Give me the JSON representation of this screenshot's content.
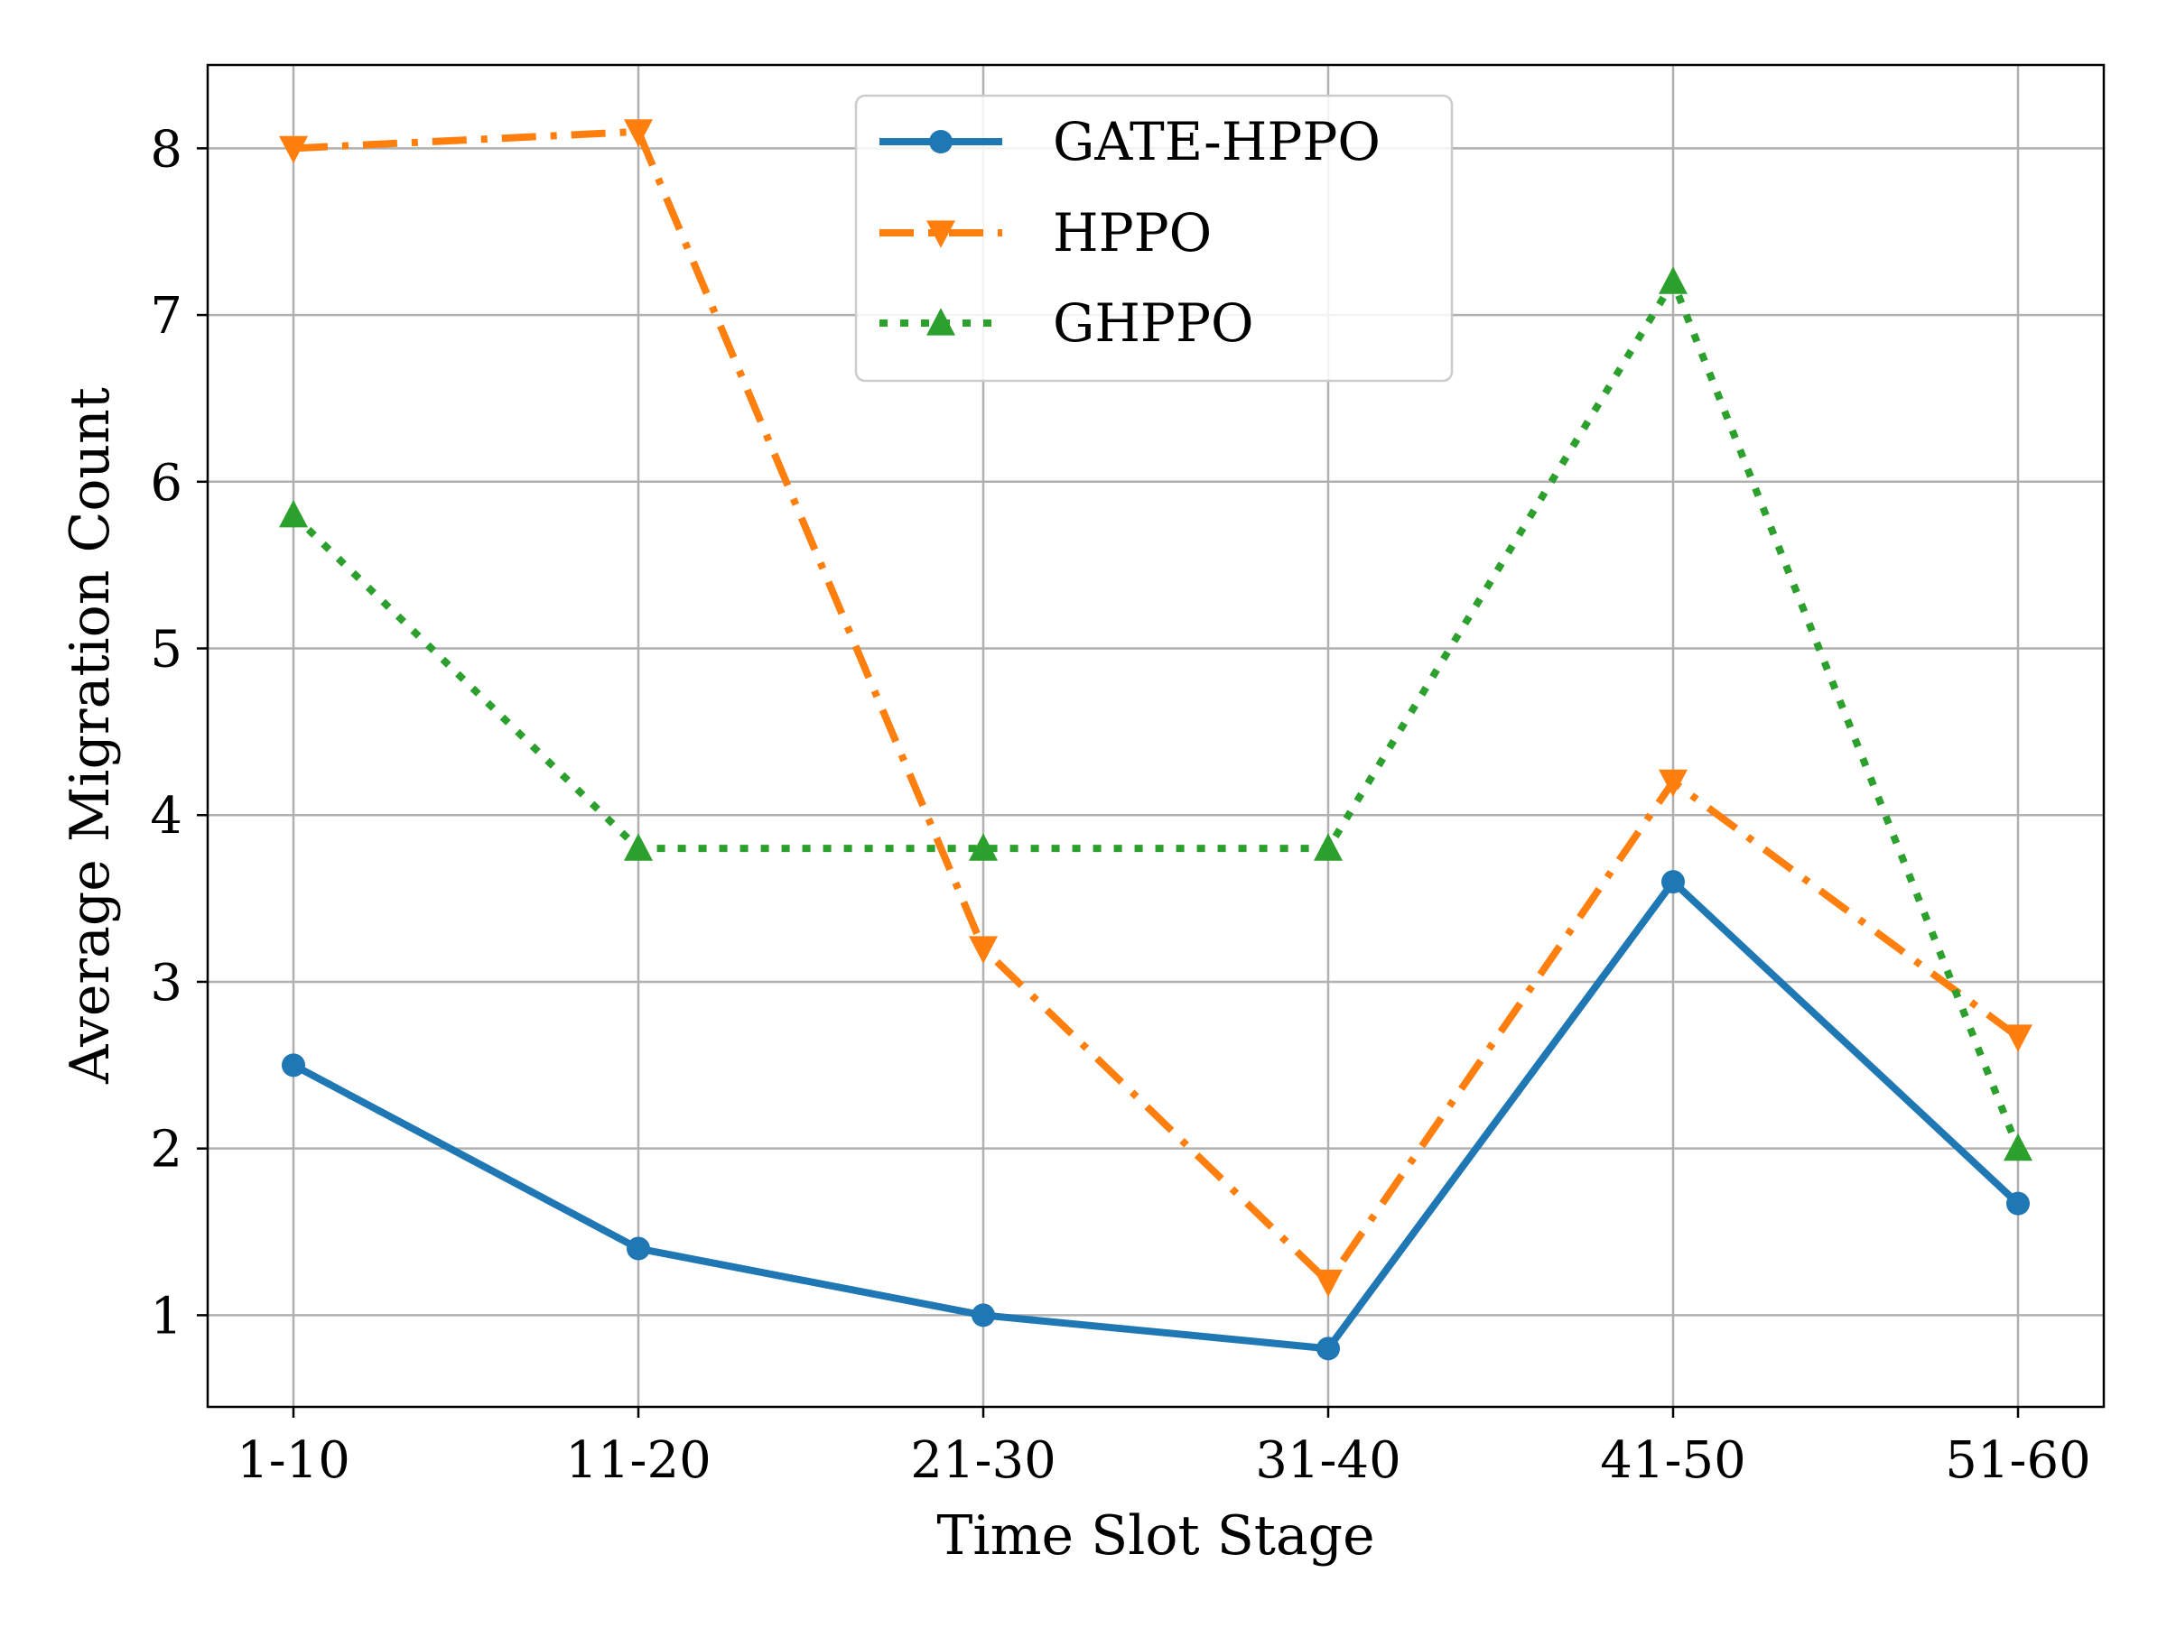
{
  "chart_data": {
    "type": "line",
    "title": "",
    "xlabel": "Time Slot Stage",
    "ylabel": "Average Migration Count",
    "categories": [
      "1-10",
      "11-20",
      "21-30",
      "31-40",
      "41-50",
      "51-60"
    ],
    "ylim": [
      0.45,
      8.5
    ],
    "yticks": [
      1,
      2,
      3,
      4,
      5,
      6,
      7,
      8
    ],
    "grid": true,
    "legend_position": "top-center",
    "series": [
      {
        "name": "GATE-HPPO",
        "values": [
          2.5,
          1.4,
          1.0,
          0.8,
          3.6,
          1.67
        ],
        "color": "#1f77b4",
        "line_style": "solid",
        "marker": "circle"
      },
      {
        "name": "HPPO",
        "values": [
          8.0,
          8.1,
          3.2,
          1.2,
          4.2,
          2.67
        ],
        "color": "#ff7f0e",
        "line_style": "dash-dot",
        "marker": "triangle-down"
      },
      {
        "name": "GHPPO",
        "values": [
          5.8,
          3.8,
          3.8,
          3.8,
          7.2,
          2.0
        ],
        "color": "#2ca02c",
        "line_style": "dotted",
        "marker": "triangle-up"
      }
    ]
  }
}
